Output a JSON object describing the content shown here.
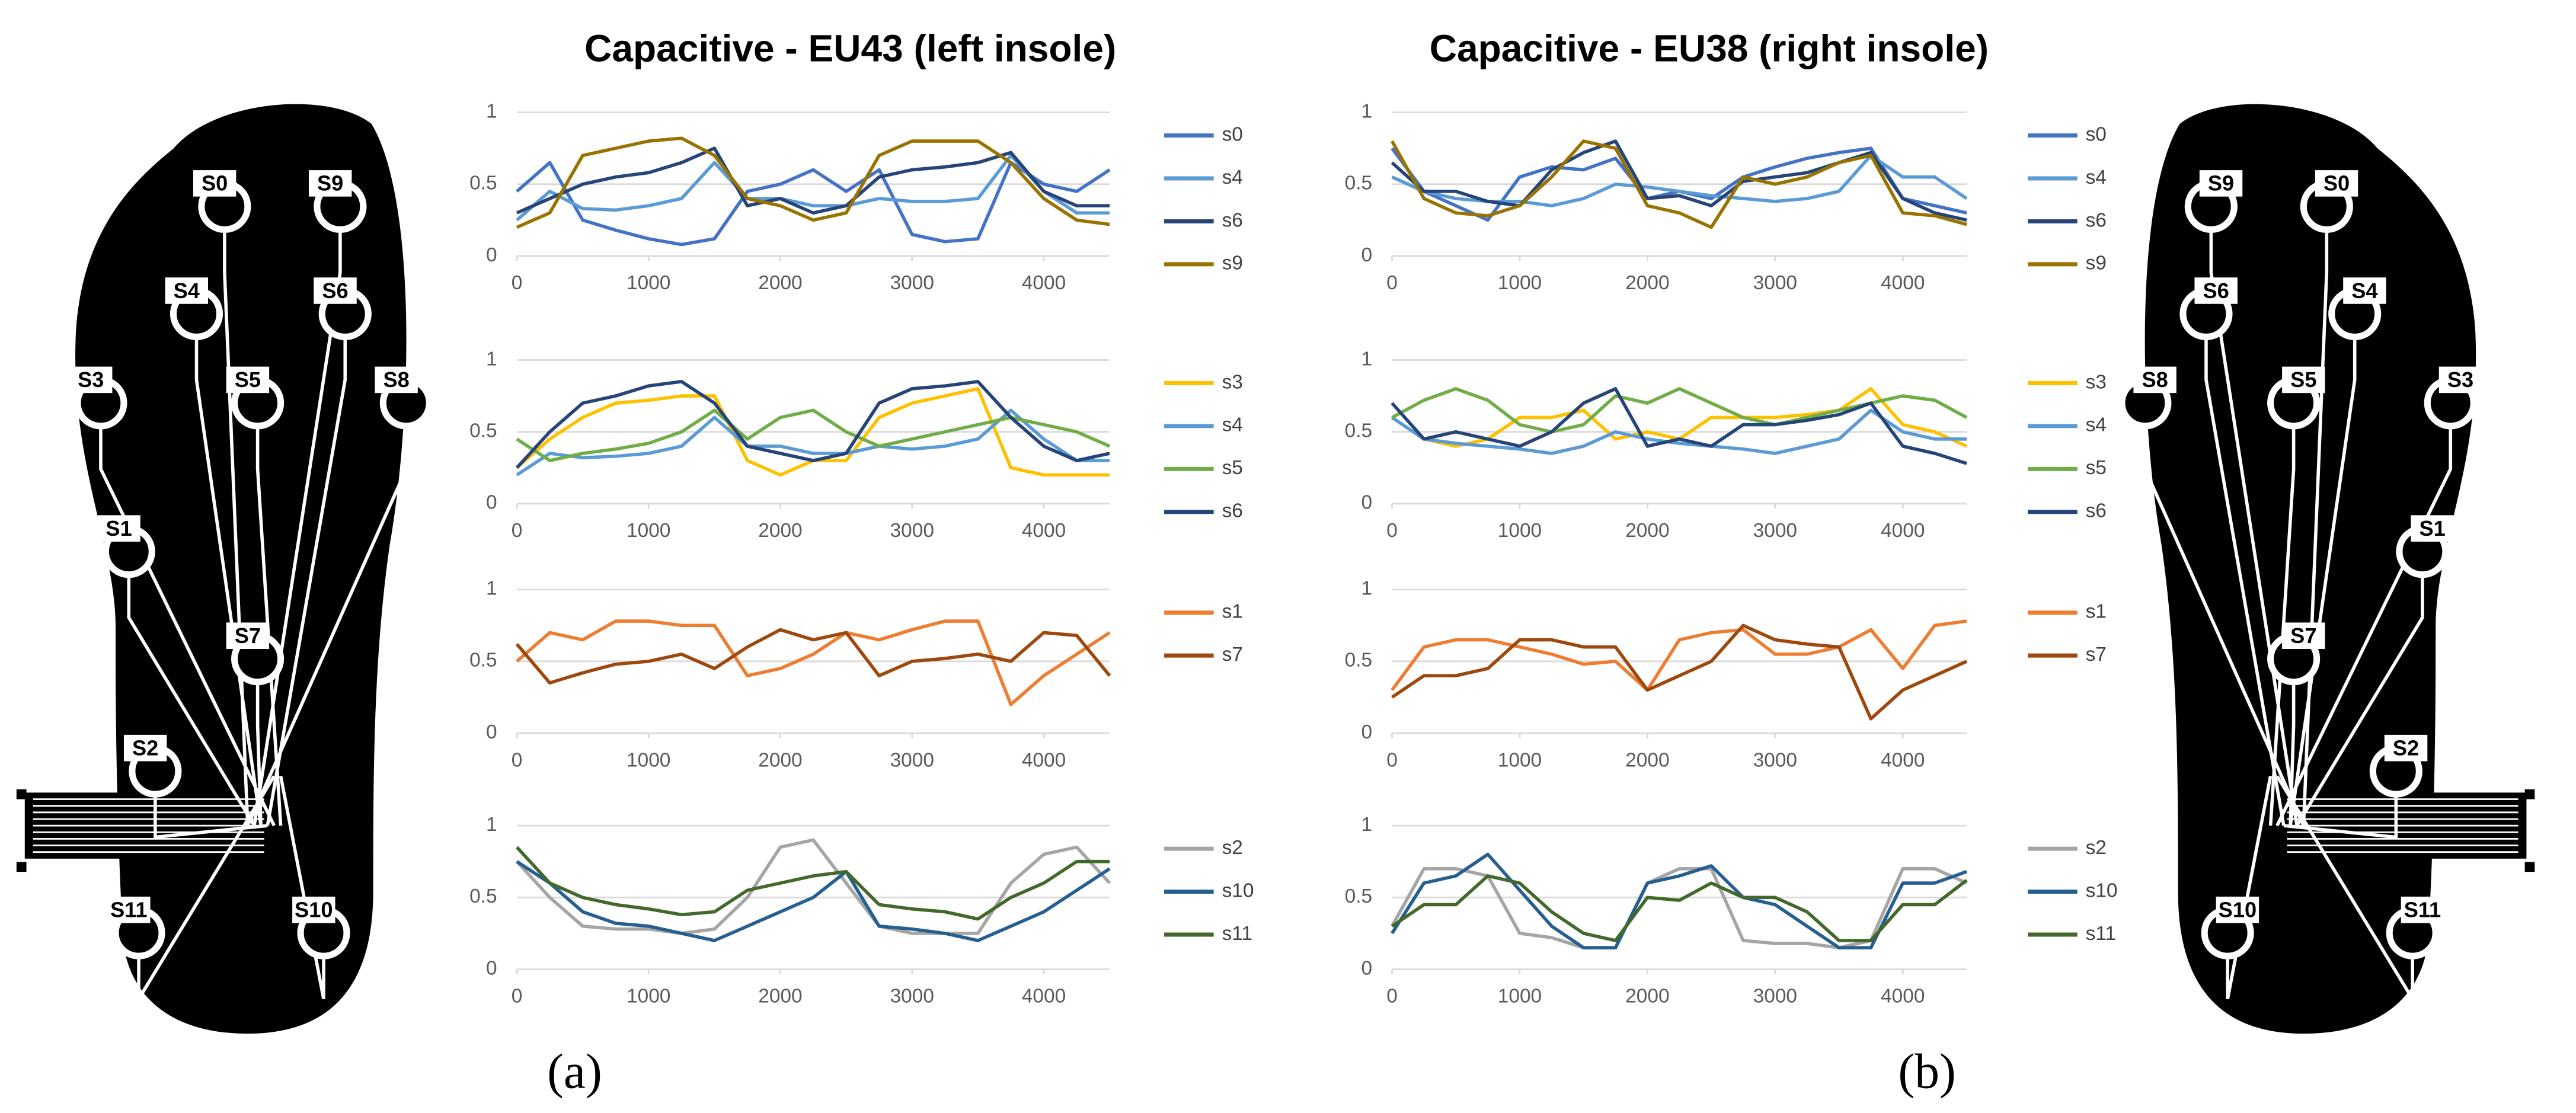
{
  "figure": {
    "titles": [
      "Capacitive - EU43 (left insole)",
      "Capacitive - EU38 (right insole)"
    ],
    "captions": [
      "(a)",
      "(b)"
    ]
  },
  "left_insole": {
    "labels": [
      "S0",
      "S9",
      "S4",
      "S6",
      "S3",
      "S5",
      "S8",
      "S1",
      "S7",
      "S2",
      "S11",
      "S10"
    ]
  },
  "right_insole": {
    "labels": [
      "S0",
      "S9",
      "S4",
      "S6",
      "S3",
      "S5",
      "S8",
      "S1",
      "S7",
      "S2",
      "S11",
      "S10"
    ]
  },
  "chart_data": [
    {
      "type": "line",
      "x": [
        0,
        250,
        500,
        750,
        1000,
        1250,
        1500,
        1750,
        2000,
        2250,
        2500,
        2750,
        3000,
        3250,
        3500,
        3750,
        4000,
        4250,
        4500
      ],
      "xlim": [
        0,
        4500
      ],
      "xticks": [
        0,
        1000,
        2000,
        3000,
        4000
      ],
      "ylim": [
        0,
        1
      ],
      "yticks": [
        0,
        0.5,
        1
      ],
      "grid": true,
      "series": [
        {
          "name": "s0",
          "color": "#4472c4",
          "values": [
            0.45,
            0.65,
            0.25,
            0.18,
            0.12,
            0.08,
            0.12,
            0.45,
            0.5,
            0.6,
            0.45,
            0.6,
            0.15,
            0.1,
            0.12,
            0.65,
            0.5,
            0.45,
            0.6
          ]
        },
        {
          "name": "s4",
          "color": "#5b9bd5",
          "values": [
            0.25,
            0.45,
            0.33,
            0.32,
            0.35,
            0.4,
            0.65,
            0.4,
            0.4,
            0.35,
            0.35,
            0.4,
            0.38,
            0.38,
            0.4,
            0.7,
            0.45,
            0.3,
            0.3
          ]
        },
        {
          "name": "s6",
          "color": "#264478",
          "values": [
            0.3,
            0.4,
            0.5,
            0.55,
            0.58,
            0.65,
            0.75,
            0.35,
            0.4,
            0.3,
            0.35,
            0.55,
            0.6,
            0.62,
            0.65,
            0.72,
            0.45,
            0.35,
            0.35
          ]
        },
        {
          "name": "s9",
          "color": "#997300",
          "values": [
            0.2,
            0.3,
            0.7,
            0.75,
            0.8,
            0.82,
            0.7,
            0.4,
            0.35,
            0.25,
            0.3,
            0.7,
            0.8,
            0.8,
            0.8,
            0.65,
            0.4,
            0.25,
            0.22
          ]
        }
      ]
    },
    {
      "type": "line",
      "x": [
        0,
        250,
        500,
        750,
        1000,
        1250,
        1500,
        1750,
        2000,
        2250,
        2500,
        2750,
        3000,
        3250,
        3500,
        3750,
        4000,
        4250,
        4500
      ],
      "xlim": [
        0,
        4500
      ],
      "xticks": [
        0,
        1000,
        2000,
        3000,
        4000
      ],
      "ylim": [
        0,
        1
      ],
      "yticks": [
        0,
        0.5,
        1
      ],
      "grid": true,
      "series": [
        {
          "name": "s3",
          "color": "#ffc000",
          "values": [
            0.25,
            0.45,
            0.6,
            0.7,
            0.72,
            0.75,
            0.75,
            0.3,
            0.2,
            0.3,
            0.3,
            0.6,
            0.7,
            0.75,
            0.8,
            0.25,
            0.2,
            0.2,
            0.2
          ]
        },
        {
          "name": "s4",
          "color": "#5b9bd5",
          "values": [
            0.2,
            0.35,
            0.32,
            0.33,
            0.35,
            0.4,
            0.6,
            0.4,
            0.4,
            0.35,
            0.35,
            0.4,
            0.38,
            0.4,
            0.45,
            0.65,
            0.45,
            0.3,
            0.3
          ]
        },
        {
          "name": "s5",
          "color": "#70ad47",
          "values": [
            0.45,
            0.3,
            0.35,
            0.38,
            0.42,
            0.5,
            0.65,
            0.45,
            0.6,
            0.65,
            0.5,
            0.4,
            0.45,
            0.5,
            0.55,
            0.6,
            0.55,
            0.5,
            0.4
          ]
        },
        {
          "name": "s6",
          "color": "#264478",
          "values": [
            0.25,
            0.5,
            0.7,
            0.75,
            0.82,
            0.85,
            0.7,
            0.4,
            0.35,
            0.3,
            0.35,
            0.7,
            0.8,
            0.82,
            0.85,
            0.6,
            0.4,
            0.3,
            0.35
          ]
        }
      ]
    },
    {
      "type": "line",
      "x": [
        0,
        250,
        500,
        750,
        1000,
        1250,
        1500,
        1750,
        2000,
        2250,
        2500,
        2750,
        3000,
        3250,
        3500,
        3750,
        4000,
        4250,
        4500
      ],
      "xlim": [
        0,
        4500
      ],
      "xticks": [
        0,
        1000,
        2000,
        3000,
        4000
      ],
      "ylim": [
        0,
        1
      ],
      "yticks": [
        0,
        0.5,
        1
      ],
      "grid": true,
      "series": [
        {
          "name": "s1",
          "color": "#ed7d31",
          "values": [
            0.5,
            0.7,
            0.65,
            0.78,
            0.78,
            0.75,
            0.75,
            0.4,
            0.45,
            0.55,
            0.7,
            0.65,
            0.72,
            0.78,
            0.78,
            0.2,
            0.4,
            0.55,
            0.7
          ]
        },
        {
          "name": "s7",
          "color": "#9e480e",
          "values": [
            0.62,
            0.35,
            0.42,
            0.48,
            0.5,
            0.55,
            0.45,
            0.6,
            0.72,
            0.65,
            0.7,
            0.4,
            0.5,
            0.52,
            0.55,
            0.5,
            0.7,
            0.68,
            0.4
          ]
        }
      ]
    },
    {
      "type": "line",
      "x": [
        0,
        250,
        500,
        750,
        1000,
        1250,
        1500,
        1750,
        2000,
        2250,
        2500,
        2750,
        3000,
        3250,
        3500,
        3750,
        4000,
        4250,
        4500
      ],
      "xlim": [
        0,
        4500
      ],
      "xticks": [
        0,
        1000,
        2000,
        3000,
        4000
      ],
      "ylim": [
        0,
        1
      ],
      "yticks": [
        0,
        0.5,
        1
      ],
      "grid": true,
      "series": [
        {
          "name": "s2",
          "color": "#a5a5a5",
          "values": [
            0.75,
            0.5,
            0.3,
            0.28,
            0.28,
            0.25,
            0.28,
            0.5,
            0.85,
            0.9,
            0.6,
            0.3,
            0.25,
            0.25,
            0.25,
            0.6,
            0.8,
            0.85,
            0.6
          ]
        },
        {
          "name": "s10",
          "color": "#255e91",
          "values": [
            0.75,
            0.6,
            0.4,
            0.32,
            0.3,
            0.25,
            0.2,
            0.3,
            0.4,
            0.5,
            0.68,
            0.3,
            0.28,
            0.25,
            0.2,
            0.3,
            0.4,
            0.55,
            0.7
          ]
        },
        {
          "name": "s11",
          "color": "#43682b",
          "values": [
            0.85,
            0.6,
            0.5,
            0.45,
            0.42,
            0.38,
            0.4,
            0.55,
            0.6,
            0.65,
            0.68,
            0.45,
            0.42,
            0.4,
            0.35,
            0.5,
            0.6,
            0.75,
            0.75
          ]
        }
      ]
    },
    {
      "type": "line",
      "x": [
        0,
        250,
        500,
        750,
        1000,
        1250,
        1500,
        1750,
        2000,
        2250,
        2500,
        2750,
        3000,
        3250,
        3500,
        3750,
        4000,
        4250,
        4500
      ],
      "xlim": [
        0,
        4500
      ],
      "xticks": [
        0,
        1000,
        2000,
        3000,
        4000
      ],
      "ylim": [
        0,
        1
      ],
      "yticks": [
        0,
        0.5,
        1
      ],
      "grid": true,
      "series": [
        {
          "name": "s0",
          "color": "#4472c4",
          "values": [
            0.75,
            0.45,
            0.35,
            0.25,
            0.55,
            0.62,
            0.6,
            0.68,
            0.4,
            0.45,
            0.4,
            0.55,
            0.62,
            0.68,
            0.72,
            0.75,
            0.4,
            0.35,
            0.3
          ]
        },
        {
          "name": "s4",
          "color": "#5b9bd5",
          "values": [
            0.55,
            0.45,
            0.4,
            0.38,
            0.38,
            0.35,
            0.4,
            0.5,
            0.48,
            0.45,
            0.42,
            0.4,
            0.38,
            0.4,
            0.45,
            0.7,
            0.55,
            0.55,
            0.4
          ]
        },
        {
          "name": "s6",
          "color": "#264478",
          "values": [
            0.65,
            0.45,
            0.45,
            0.38,
            0.35,
            0.6,
            0.72,
            0.8,
            0.4,
            0.42,
            0.35,
            0.52,
            0.55,
            0.58,
            0.65,
            0.72,
            0.4,
            0.3,
            0.25
          ]
        },
        {
          "name": "s9",
          "color": "#997300",
          "values": [
            0.8,
            0.4,
            0.3,
            0.28,
            0.35,
            0.55,
            0.8,
            0.75,
            0.35,
            0.3,
            0.2,
            0.55,
            0.5,
            0.55,
            0.65,
            0.7,
            0.3,
            0.28,
            0.22
          ]
        }
      ]
    },
    {
      "type": "line",
      "x": [
        0,
        250,
        500,
        750,
        1000,
        1250,
        1500,
        1750,
        2000,
        2250,
        2500,
        2750,
        3000,
        3250,
        3500,
        3750,
        4000,
        4250,
        4500
      ],
      "xlim": [
        0,
        4500
      ],
      "xticks": [
        0,
        1000,
        2000,
        3000,
        4000
      ],
      "ylim": [
        0,
        1
      ],
      "yticks": [
        0,
        0.5,
        1
      ],
      "grid": true,
      "series": [
        {
          "name": "s3",
          "color": "#ffc000",
          "values": [
            0.6,
            0.45,
            0.4,
            0.45,
            0.6,
            0.6,
            0.65,
            0.45,
            0.5,
            0.45,
            0.6,
            0.6,
            0.6,
            0.62,
            0.65,
            0.8,
            0.55,
            0.5,
            0.4
          ]
        },
        {
          "name": "s4",
          "color": "#5b9bd5",
          "values": [
            0.6,
            0.45,
            0.42,
            0.4,
            0.38,
            0.35,
            0.4,
            0.5,
            0.45,
            0.42,
            0.4,
            0.38,
            0.35,
            0.4,
            0.45,
            0.65,
            0.5,
            0.45,
            0.45
          ]
        },
        {
          "name": "s5",
          "color": "#70ad47",
          "values": [
            0.6,
            0.72,
            0.8,
            0.72,
            0.55,
            0.5,
            0.55,
            0.75,
            0.7,
            0.8,
            0.7,
            0.6,
            0.55,
            0.6,
            0.65,
            0.7,
            0.75,
            0.72,
            0.6
          ]
        },
        {
          "name": "s6",
          "color": "#264478",
          "values": [
            0.7,
            0.45,
            0.5,
            0.45,
            0.4,
            0.5,
            0.7,
            0.8,
            0.4,
            0.45,
            0.4,
            0.55,
            0.55,
            0.58,
            0.62,
            0.7,
            0.4,
            0.35,
            0.28
          ]
        }
      ]
    },
    {
      "type": "line",
      "x": [
        0,
        250,
        500,
        750,
        1000,
        1250,
        1500,
        1750,
        2000,
        2250,
        2500,
        2750,
        3000,
        3250,
        3500,
        3750,
        4000,
        4250,
        4500
      ],
      "xlim": [
        0,
        4500
      ],
      "xticks": [
        0,
        1000,
        2000,
        3000,
        4000
      ],
      "ylim": [
        0,
        1
      ],
      "yticks": [
        0,
        0.5,
        1
      ],
      "grid": true,
      "series": [
        {
          "name": "s1",
          "color": "#ed7d31",
          "values": [
            0.3,
            0.6,
            0.65,
            0.65,
            0.6,
            0.55,
            0.48,
            0.5,
            0.3,
            0.65,
            0.7,
            0.72,
            0.55,
            0.55,
            0.6,
            0.72,
            0.45,
            0.75,
            0.78
          ]
        },
        {
          "name": "s7",
          "color": "#9e480e",
          "values": [
            0.25,
            0.4,
            0.4,
            0.45,
            0.65,
            0.65,
            0.6,
            0.6,
            0.3,
            0.4,
            0.5,
            0.75,
            0.65,
            0.62,
            0.6,
            0.1,
            0.3,
            0.4,
            0.5
          ]
        }
      ]
    },
    {
      "type": "line",
      "x": [
        0,
        250,
        500,
        750,
        1000,
        1250,
        1500,
        1750,
        2000,
        2250,
        2500,
        2750,
        3000,
        3250,
        3500,
        3750,
        4000,
        4250,
        4500
      ],
      "xlim": [
        0,
        4500
      ],
      "xticks": [
        0,
        1000,
        2000,
        3000,
        4000
      ],
      "ylim": [
        0,
        1
      ],
      "yticks": [
        0,
        0.5,
        1
      ],
      "grid": true,
      "series": [
        {
          "name": "s2",
          "color": "#a5a5a5",
          "values": [
            0.3,
            0.7,
            0.7,
            0.65,
            0.25,
            0.22,
            0.15,
            0.15,
            0.6,
            0.7,
            0.7,
            0.2,
            0.18,
            0.18,
            0.15,
            0.2,
            0.7,
            0.7,
            0.6
          ]
        },
        {
          "name": "s10",
          "color": "#255e91",
          "values": [
            0.25,
            0.6,
            0.65,
            0.8,
            0.55,
            0.3,
            0.15,
            0.15,
            0.6,
            0.65,
            0.72,
            0.5,
            0.45,
            0.3,
            0.15,
            0.15,
            0.6,
            0.6,
            0.68
          ]
        },
        {
          "name": "s11",
          "color": "#43682b",
          "values": [
            0.3,
            0.45,
            0.45,
            0.65,
            0.6,
            0.4,
            0.25,
            0.2,
            0.5,
            0.48,
            0.6,
            0.5,
            0.5,
            0.4,
            0.2,
            0.2,
            0.45,
            0.45,
            0.62
          ]
        }
      ]
    }
  ]
}
